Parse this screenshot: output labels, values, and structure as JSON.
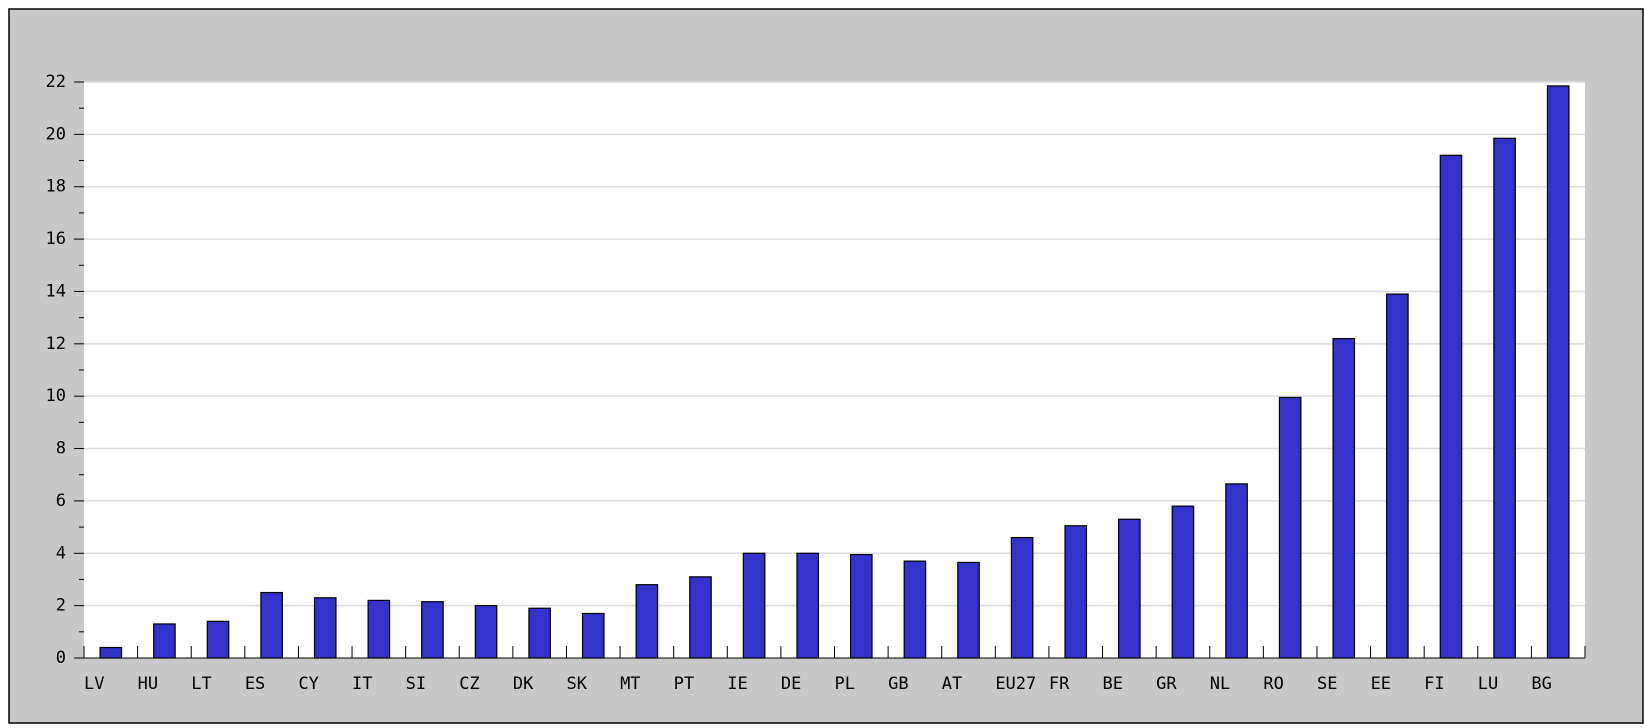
{
  "chart_data": {
    "type": "bar",
    "categories": [
      "LV",
      "HU",
      "LT",
      "ES",
      "CY",
      "IT",
      "SI",
      "CZ",
      "DK",
      "SK",
      "MT",
      "PT",
      "IE",
      "DE",
      "PL",
      "GB",
      "AT",
      "EU27",
      "FR",
      "BE",
      "GR",
      "NL",
      "RO",
      "SE",
      "EE",
      "FI",
      "LU",
      "BG"
    ],
    "values": [
      0.4,
      1.3,
      1.4,
      2.5,
      2.3,
      2.2,
      2.15,
      2.0,
      1.9,
      1.7,
      2.8,
      3.1,
      4.0,
      4.0,
      3.95,
      3.7,
      3.65,
      4.6,
      5.05,
      5.3,
      5.8,
      6.65,
      9.95,
      12.2,
      13.9,
      19.2,
      19.85,
      21.85
    ],
    "color": "#3333cc",
    "ylim": [
      0,
      22
    ],
    "yticks": [
      0,
      2,
      4,
      6,
      8,
      10,
      12,
      14,
      16,
      18,
      20,
      22
    ],
    "grid": true
  }
}
